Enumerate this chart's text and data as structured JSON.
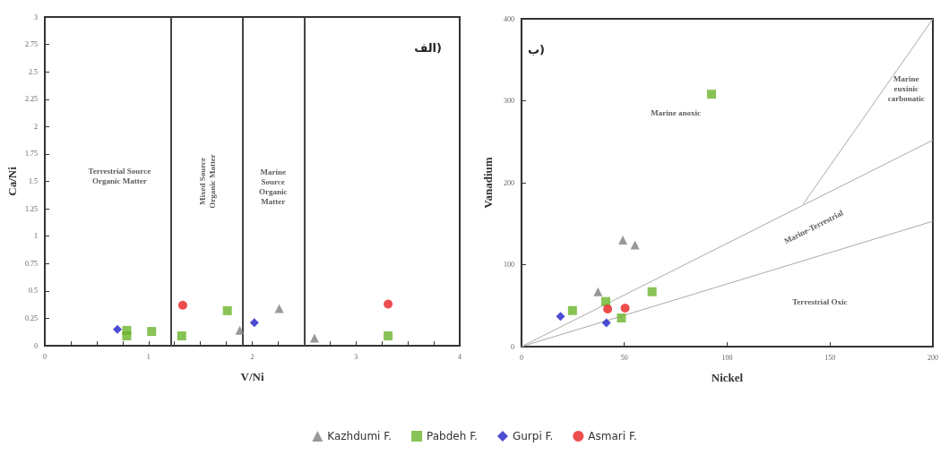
{
  "chart_data": [
    {
      "type": "scatter",
      "xlabel": "V/Ni",
      "ylabel": "Ca/Ni",
      "legend": "bottom",
      "grid": false,
      "xlim": [
        0,
        4
      ],
      "xticks": [
        0,
        {
          "value": 0.25,
          "label": null
        },
        {
          "value": 0.5,
          "label": null
        },
        {
          "value": 0.75,
          "label": null
        },
        1,
        {
          "value": 1.25,
          "label": null
        },
        {
          "value": 1.5,
          "label": null
        },
        {
          "value": 1.75,
          "label": null
        },
        2,
        {
          "value": 2.25,
          "label": null
        },
        {
          "value": 2.5,
          "label": null
        },
        {
          "value": 2.75,
          "label": null
        },
        3,
        {
          "value": 3.25,
          "label": null
        },
        {
          "value": 3.5,
          "label": null
        },
        {
          "value": 3.75,
          "label": null
        },
        4
      ],
      "ylim": [
        0,
        3
      ],
      "yticks": [
        0,
        0.25,
        0.5,
        0.75,
        1,
        1.25,
        1.5,
        1.75,
        2,
        2.25,
        2.5,
        2.75,
        3
      ],
      "ref_lines": [
        {
          "axis": "x",
          "value": 1.22,
          "color": "#444444"
        },
        {
          "axis": "x",
          "value": 1.91,
          "color": "#444444"
        },
        {
          "axis": "x",
          "value": 2.5,
          "color": "#444444"
        }
      ],
      "series": [
        {
          "name": "Kazhdumi F.",
          "color": "#808080",
          "marker": "triangle",
          "x": [
            1.88,
            2.26,
            2.6
          ],
          "values": [
            0.14,
            0.34,
            0.07
          ]
        },
        {
          "name": "Pabdeh F.",
          "color": "#6ab42a",
          "marker": "square",
          "x": [
            0.79,
            0.79,
            1.03,
            1.32,
            1.76,
            3.31
          ],
          "values": [
            0.14,
            0.09,
            0.13,
            0.09,
            0.32,
            0.09
          ]
        },
        {
          "name": "Gurpi F.",
          "color": "#1f1fc8",
          "marker": "diamond",
          "x": [
            0.7,
            2.02
          ],
          "values": [
            0.15,
            0.21
          ]
        },
        {
          "name": "Asmari F.",
          "color": "#e82020",
          "marker": "circle",
          "x": [
            1.33,
            3.31
          ],
          "values": [
            0.37,
            0.38
          ]
        }
      ],
      "annotations": [
        "الف)",
        "Terrestrial Source\nOrganic Matter",
        "Mixed Source\nOrganic Matter",
        "Marine\nSource\nOrganic\nMatter"
      ]
    },
    {
      "type": "scatter",
      "xlabel": "Nickel",
      "ylabel": "Vanadium",
      "grid": false,
      "xlim": [
        0,
        200
      ],
      "xticks": [
        0,
        50,
        100,
        150,
        200
      ],
      "ylim": [
        0,
        400
      ],
      "yticks": [
        0,
        100,
        200,
        300,
        400
      ],
      "series": [
        {
          "type": "line",
          "color": "#aaaaaa",
          "x": [
            0,
            200
          ],
          "values": [
            0,
            252
          ]
        },
        {
          "type": "line",
          "color": "#aaaaaa",
          "x": [
            0,
            200
          ],
          "values": [
            0,
            153
          ]
        },
        {
          "type": "line",
          "color": "#aaaaaa",
          "x": [
            137,
            200
          ],
          "values": [
            174,
            400
          ]
        },
        {
          "color": "#808080",
          "marker": "triangle",
          "x": [
            49.3,
            55.2,
            37.2
          ],
          "values": [
            130,
            124,
            67
          ]
        },
        {
          "color": "#6ab42a",
          "marker": "square",
          "x": [
            24.8,
            41,
            63.5,
            48.6,
            92.4
          ],
          "values": [
            44,
            55,
            67,
            35,
            308
          ]
        },
        {
          "color": "#1f1fc8",
          "marker": "diamond",
          "x": [
            19,
            41.3
          ],
          "values": [
            37,
            29
          ]
        },
        {
          "color": "#e82020",
          "marker": "circle",
          "x": [
            41.9,
            50.4
          ],
          "values": [
            46,
            47
          ]
        }
      ],
      "annotations": [
        "ب)",
        "Marine anoxic",
        "Marine\neuxinic\ncarbonatic",
        "Marine-Terrestrial",
        "Terrestrial Oxic"
      ]
    }
  ]
}
